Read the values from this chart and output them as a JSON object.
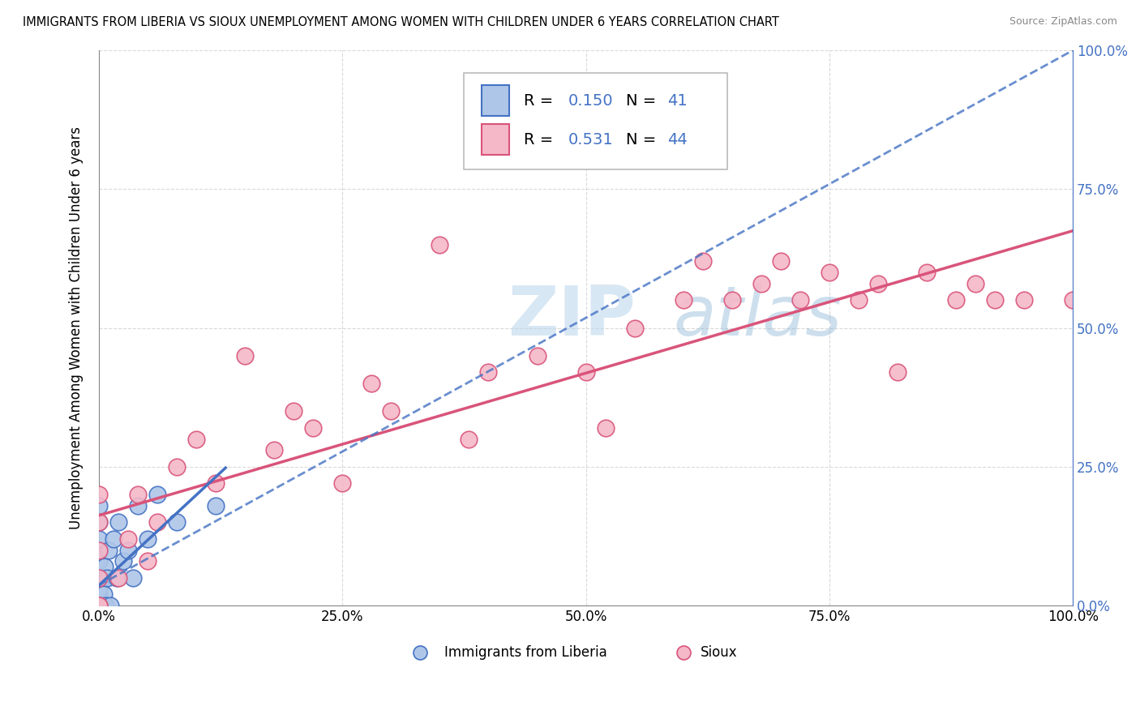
{
  "title": "IMMIGRANTS FROM LIBERIA VS SIOUX UNEMPLOYMENT AMONG WOMEN WITH CHILDREN UNDER 6 YEARS CORRELATION CHART",
  "source": "Source: ZipAtlas.com",
  "ylabel": "Unemployment Among Women with Children Under 6 years",
  "xlim": [
    0.0,
    1.0
  ],
  "ylim": [
    0.0,
    1.0
  ],
  "xtick_labels": [
    "0.0%",
    "25.0%",
    "50.0%",
    "75.0%",
    "100.0%"
  ],
  "xtick_values": [
    0.0,
    0.25,
    0.5,
    0.75,
    1.0
  ],
  "ytick_values": [
    0.0,
    0.25,
    0.5,
    0.75,
    1.0
  ],
  "right_ytick_labels": [
    "0.0%",
    "25.0%",
    "50.0%",
    "75.0%",
    "100.0%"
  ],
  "right_ytick_values": [
    0.0,
    0.25,
    0.5,
    0.75,
    1.0
  ],
  "liberia_color": "#aec6e8",
  "sioux_color": "#f4b8c8",
  "liberia_R": 0.15,
  "liberia_N": 41,
  "sioux_R": 0.531,
  "sioux_N": 44,
  "liberia_line_color": "#4472c4",
  "sioux_line_color": "#d9547a",
  "watermark_zip": "ZIP",
  "watermark_atlas": "atlas",
  "background_color": "#ffffff",
  "grid_color": "#d0d0d0",
  "legend_R_N_color": "#4472c4",
  "right_axis_color": "#4472c4",
  "liberia_x": [
    0.0,
    0.0,
    0.0,
    0.0,
    0.0,
    0.0,
    0.0,
    0.0,
    0.0,
    0.0,
    0.0,
    0.0,
    0.0,
    0.0,
    0.0,
    0.0,
    0.0,
    0.0,
    0.0,
    0.0,
    0.001,
    0.002,
    0.003,
    0.004,
    0.005,
    0.006,
    0.007,
    0.008,
    0.01,
    0.012,
    0.015,
    0.018,
    0.02,
    0.025,
    0.03,
    0.035,
    0.04,
    0.05,
    0.06,
    0.08,
    0.12
  ],
  "liberia_y": [
    0.0,
    0.0,
    0.0,
    0.0,
    0.0,
    0.0,
    0.0,
    0.0,
    0.0,
    0.0,
    0.0,
    0.0,
    0.02,
    0.03,
    0.05,
    0.08,
    0.1,
    0.12,
    0.15,
    0.18,
    0.0,
    0.0,
    0.05,
    0.0,
    0.02,
    0.07,
    0.0,
    0.05,
    0.1,
    0.0,
    0.12,
    0.05,
    0.15,
    0.08,
    0.1,
    0.05,
    0.18,
    0.12,
    0.2,
    0.15,
    0.18
  ],
  "sioux_x": [
    0.0,
    0.0,
    0.0,
    0.0,
    0.0,
    0.0,
    0.02,
    0.03,
    0.04,
    0.05,
    0.06,
    0.08,
    0.1,
    0.12,
    0.15,
    0.18,
    0.2,
    0.22,
    0.25,
    0.28,
    0.3,
    0.35,
    0.38,
    0.4,
    0.45,
    0.5,
    0.52,
    0.55,
    0.6,
    0.62,
    0.65,
    0.68,
    0.7,
    0.72,
    0.75,
    0.78,
    0.8,
    0.82,
    0.85,
    0.88,
    0.9,
    0.92,
    0.95,
    1.0
  ],
  "sioux_y": [
    0.0,
    0.0,
    0.05,
    0.1,
    0.15,
    0.2,
    0.05,
    0.12,
    0.2,
    0.08,
    0.15,
    0.25,
    0.3,
    0.22,
    0.45,
    0.28,
    0.35,
    0.32,
    0.22,
    0.4,
    0.35,
    0.65,
    0.3,
    0.42,
    0.45,
    0.42,
    0.32,
    0.5,
    0.55,
    0.62,
    0.55,
    0.58,
    0.62,
    0.55,
    0.6,
    0.55,
    0.58,
    0.42,
    0.6,
    0.55,
    0.58,
    0.55,
    0.55,
    0.55
  ]
}
